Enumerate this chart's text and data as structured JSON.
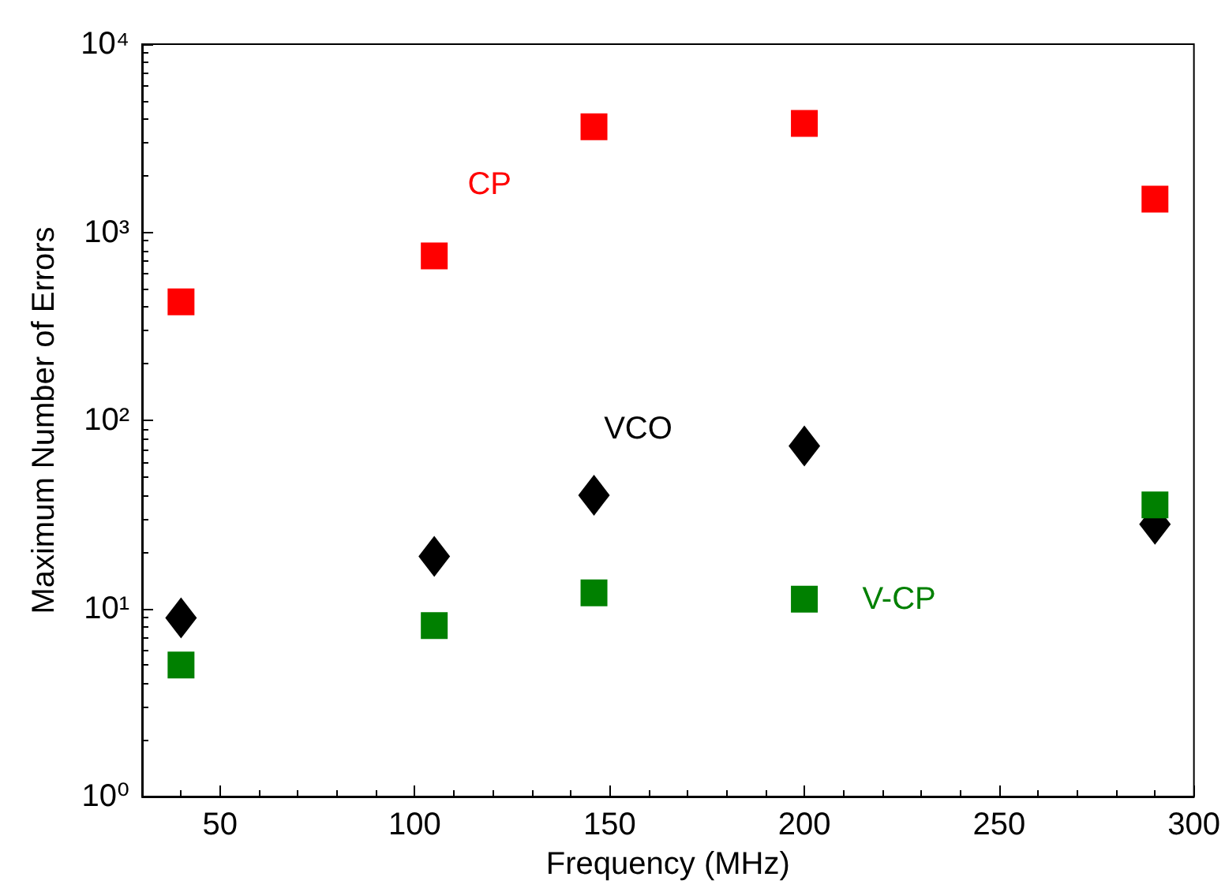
{
  "chart_data": {
    "type": "scatter",
    "xlabel": "Frequency (MHz)",
    "ylabel": "Maximum Number of Errors",
    "x": [
      40,
      105,
      146,
      200,
      290
    ],
    "series": [
      {
        "name": "CP",
        "color": "#ff0000",
        "marker": "square",
        "values": [
          427,
          749,
          3640,
          3790,
          1500
        ]
      },
      {
        "name": "VCO",
        "color": "#000000",
        "marker": "diamond",
        "values": [
          8.9,
          18.9,
          40,
          73,
          28
        ]
      },
      {
        "name": "V-CP",
        "color": "#008000",
        "marker": "square",
        "values": [
          5,
          8.1,
          12.1,
          11.2,
          35.5
        ]
      }
    ],
    "log": "y",
    "xlim": [
      30,
      300
    ],
    "xticks": [
      50,
      100,
      150,
      200,
      250,
      300
    ],
    "ylim": [
      1,
      10000
    ],
    "yticks": [
      {
        "value": 1,
        "label": "10⁰"
      },
      {
        "value": 10,
        "label": "10¹"
      },
      {
        "value": 100,
        "label": "10²"
      },
      {
        "value": 1000,
        "label": "10³"
      },
      {
        "value": 10000,
        "label": "10⁴"
      }
    ],
    "grid": false
  }
}
